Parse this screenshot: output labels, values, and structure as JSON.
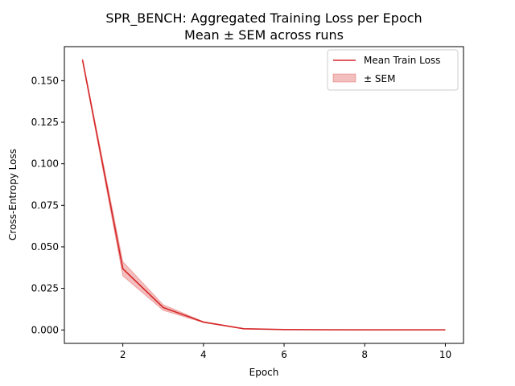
{
  "chart_data": {
    "type": "line",
    "title": "SPR_BENCH: Aggregated Training Loss per Epoch",
    "subtitle": "Mean ± SEM across runs",
    "xlabel": "Epoch",
    "ylabel": "Cross-Entropy Loss",
    "xlim": [
      0.55,
      10.45
    ],
    "ylim": [
      -0.0081,
      0.1705
    ],
    "xticks": [
      2,
      4,
      6,
      8,
      10
    ],
    "xtick_labels": [
      "2",
      "4",
      "6",
      "8",
      "10"
    ],
    "yticks": [
      0.0,
      0.025,
      0.05,
      0.075,
      0.1,
      0.125,
      0.15
    ],
    "ytick_labels": [
      "0.000",
      "0.025",
      "0.050",
      "0.075",
      "0.100",
      "0.125",
      "0.150"
    ],
    "grid": false,
    "legend_position": "top-right",
    "colors": {
      "line": "#d62728",
      "band": "#d62728"
    },
    "series": [
      {
        "name": "Mean Train Loss",
        "x": [
          1,
          2,
          3,
          4,
          5,
          6,
          7,
          8,
          9,
          10
        ],
        "values": [
          0.1625,
          0.0368,
          0.0135,
          0.0047,
          0.0007,
          0.0002,
          0.0001,
          5e-05,
          3e-05,
          2e-05
        ]
      }
    ],
    "band": {
      "name": "± SEM",
      "lower": [
        0.1618,
        0.0325,
        0.0118,
        0.0044,
        0.0006,
        0.0002,
        0.0001,
        5e-05,
        3e-05,
        2e-05
      ],
      "upper": [
        0.1632,
        0.0411,
        0.0152,
        0.005,
        0.0008,
        0.0002,
        0.0001,
        5e-05,
        3e-05,
        2e-05
      ]
    }
  }
}
